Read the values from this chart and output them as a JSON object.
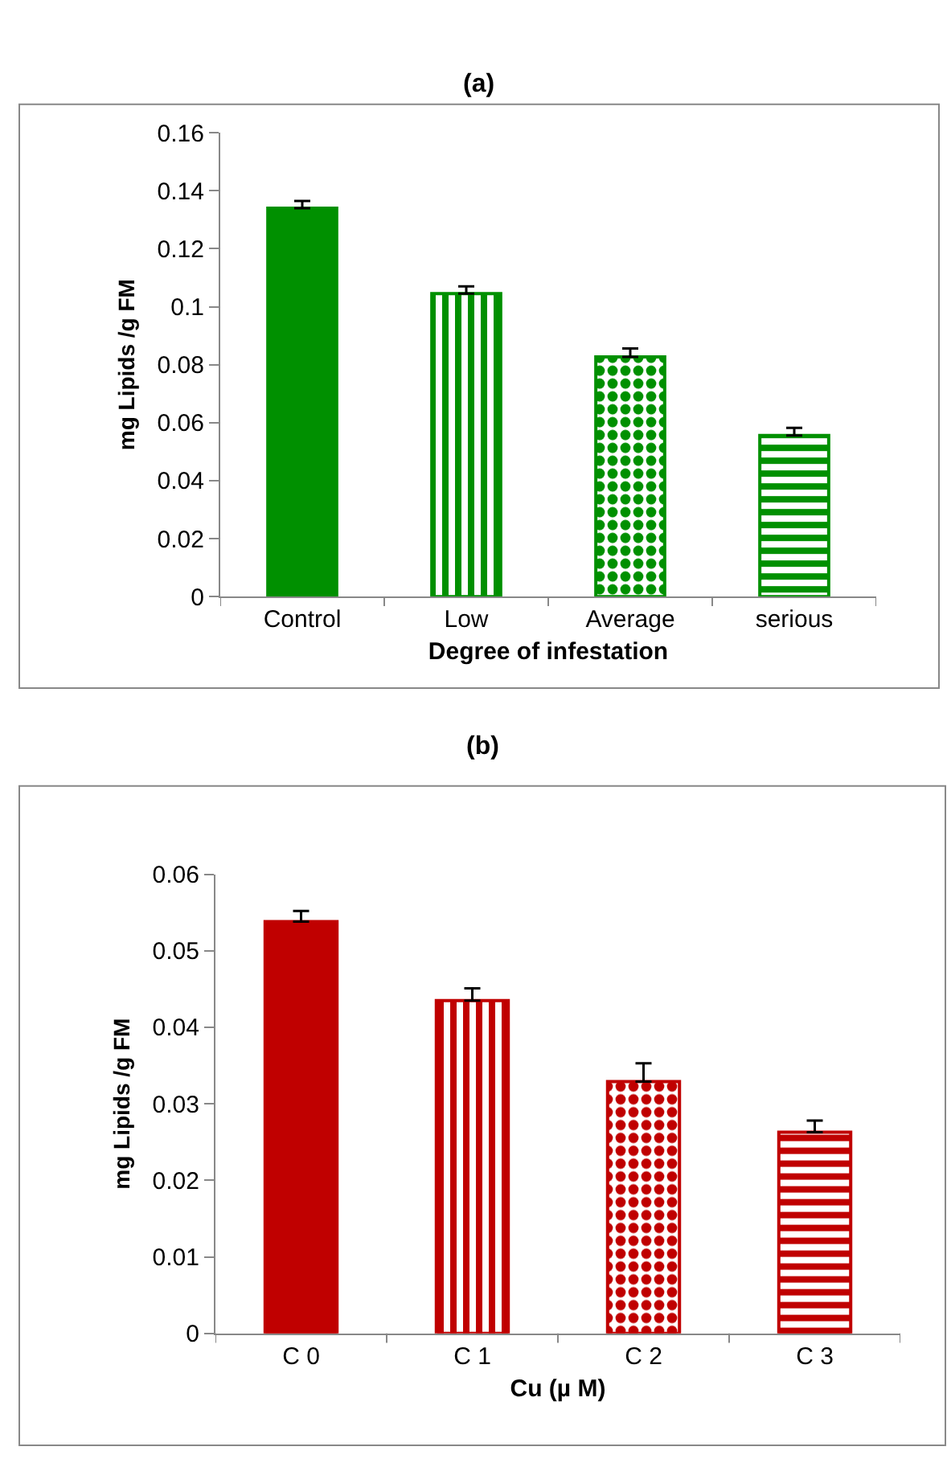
{
  "chart_data": [
    {
      "type": "bar",
      "title": "(a)",
      "xlabel": "Degree of infestation",
      "ylabel": "mg Lipids /g FM",
      "categories": [
        "Control",
        "Low",
        "Average",
        "serious"
      ],
      "series": [
        {
          "color": "#009000",
          "values": [
            0.134,
            0.1045,
            0.0827,
            0.0556
          ],
          "errors": [
            [
              0.134,
              0.1365
            ],
            [
              0.1045,
              0.107
            ],
            [
              0.0827,
              0.0856
            ],
            [
              0.0556,
              0.0582
            ]
          ]
        }
      ],
      "ylim": [
        0,
        0.16
      ],
      "yticks": [
        0,
        0.02,
        0.04,
        0.06,
        0.08,
        0.1,
        0.12,
        0.14,
        0.16
      ]
    },
    {
      "type": "bar",
      "title": "(b)",
      "xlabel": "Cu (µ M)",
      "ylabel": "mg Lipids /g FM",
      "categories": [
        "C 0",
        "C 1",
        "C 2",
        "C 3"
      ],
      "series": [
        {
          "color": "#c00000",
          "values": [
            0.0538,
            0.0435,
            0.0329,
            0.0263
          ],
          "errors": [
            [
              0.0538,
              0.0552
            ],
            [
              0.0435,
              0.0451
            ],
            [
              0.0329,
              0.0353
            ],
            [
              0.0263,
              0.0278
            ]
          ]
        }
      ],
      "ylim": [
        0,
        0.06
      ],
      "yticks": [
        0,
        0.01,
        0.02,
        0.03,
        0.04,
        0.05,
        0.06
      ]
    }
  ]
}
